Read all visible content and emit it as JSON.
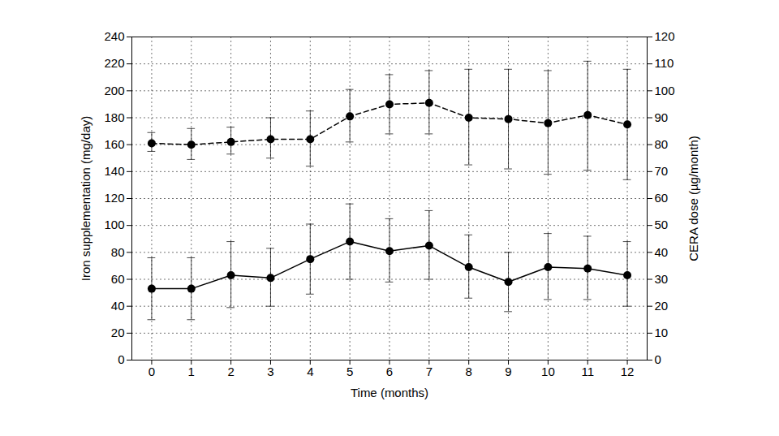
{
  "chart_data": {
    "type": "line",
    "xlabel": "Time (months)",
    "ylabel": "Iron supplementation (mg/day)",
    "y2label": "CERA dose (µg/month)",
    "x": [
      0,
      1,
      2,
      3,
      4,
      5,
      6,
      7,
      8,
      9,
      10,
      11,
      12
    ],
    "xlim": [
      -0.5,
      12.5
    ],
    "xticks": [
      0,
      1,
      2,
      3,
      4,
      5,
      6,
      7,
      8,
      9,
      10,
      11,
      12
    ],
    "ylim": [
      0,
      240
    ],
    "yticks": [
      0,
      20,
      40,
      60,
      80,
      100,
      120,
      140,
      160,
      180,
      200,
      220,
      240
    ],
    "y2lim": [
      0,
      120
    ],
    "y2ticks": [
      0,
      10,
      20,
      30,
      40,
      50,
      60,
      70,
      80,
      90,
      100,
      110,
      120
    ],
    "grid": true,
    "series": [
      {
        "axis": "y",
        "color": "#000000",
        "line_style": "solid",
        "marker": "circle",
        "values": [
          53,
          53,
          63,
          61,
          75,
          88,
          81,
          85,
          69,
          58,
          69,
          68,
          63
        ],
        "error_low": [
          30,
          30,
          39,
          40,
          49,
          60,
          58,
          60,
          46,
          36,
          45,
          45,
          40
        ],
        "error_high": [
          76,
          76,
          88,
          83,
          101,
          116,
          105,
          111,
          93,
          80,
          94,
          92,
          88
        ]
      },
      {
        "axis": "y2",
        "color": "#000000",
        "line_style": "dashed",
        "marker": "circle",
        "values": [
          80.5,
          80,
          81,
          82,
          82,
          90.5,
          95,
          95.5,
          90,
          89.5,
          88,
          91,
          87.5
        ],
        "error_low": [
          77.5,
          74.5,
          76.5,
          75,
          72,
          81,
          84,
          84,
          72.5,
          71,
          69,
          70.5,
          67
        ],
        "error_high": [
          84.5,
          86,
          86.5,
          90,
          92.5,
          100.5,
          106,
          107.5,
          108,
          108,
          107.5,
          111,
          108
        ]
      }
    ]
  }
}
